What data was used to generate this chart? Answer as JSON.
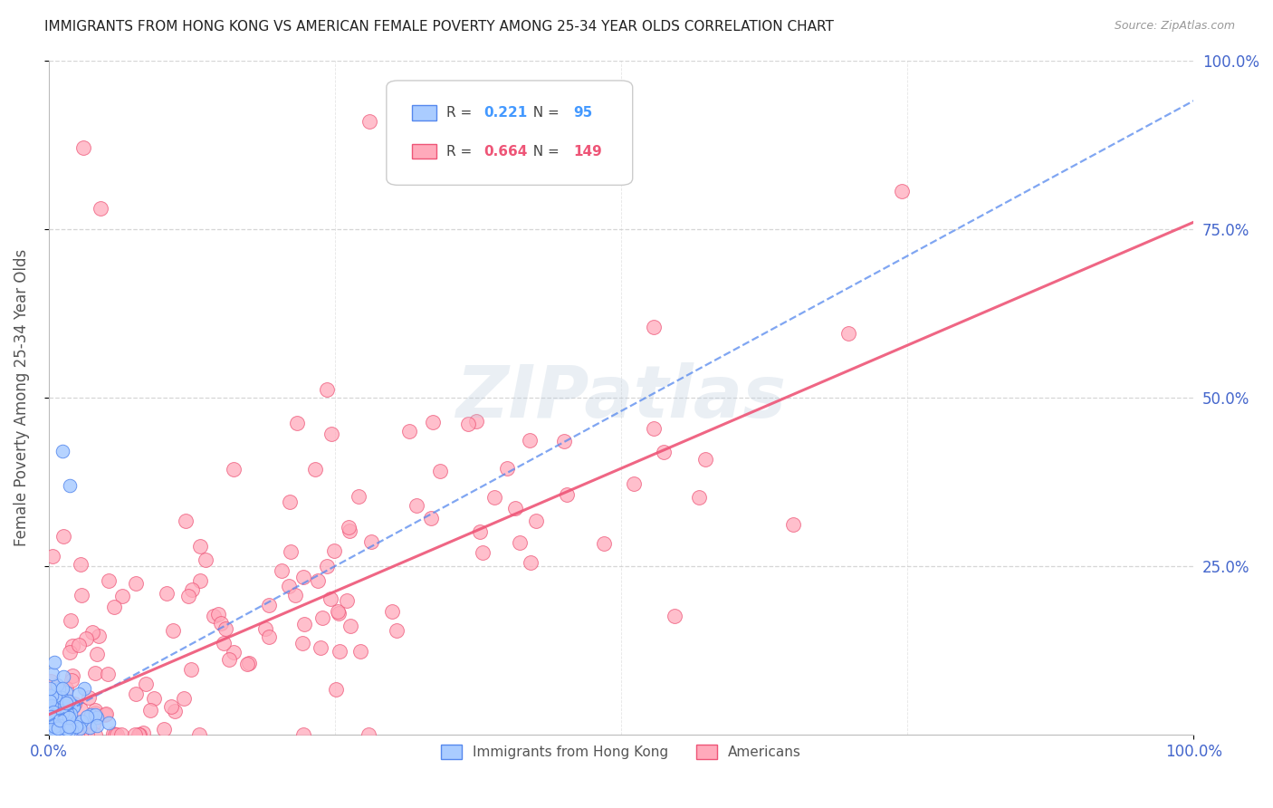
{
  "title": "IMMIGRANTS FROM HONG KONG VS AMERICAN FEMALE POVERTY AMONG 25-34 YEAR OLDS CORRELATION CHART",
  "source": "Source: ZipAtlas.com",
  "ylabel": "Female Poverty Among 25-34 Year Olds",
  "xlim": [
    0.0,
    1.0
  ],
  "ylim": [
    0.0,
    1.0
  ],
  "xticks": [
    0.0,
    1.0
  ],
  "xtick_labels": [
    "0.0%",
    "100.0%"
  ],
  "yticks": [
    0.0,
    0.25,
    0.5,
    0.75,
    1.0
  ],
  "ytick_labels_right": [
    "",
    "25.0%",
    "50.0%",
    "75.0%",
    "100.0%"
  ],
  "series1_label": "Immigrants from Hong Kong",
  "series1_R": 0.221,
  "series1_N": 95,
  "series1_edge_color": "#5588ee",
  "series1_fill_color": "#aaccff",
  "series2_label": "Americans",
  "series2_R": 0.664,
  "series2_N": 149,
  "series2_edge_color": "#ee5577",
  "series2_fill_color": "#ffaabb",
  "blue_line_slope": 0.92,
  "blue_line_intercept": 0.02,
  "pink_line_slope": 0.73,
  "pink_line_intercept": 0.03,
  "watermark": "ZIPatlas",
  "background_color": "#ffffff",
  "grid_color": "#cccccc",
  "title_color": "#222222",
  "axis_label_color": "#555555",
  "tick_label_color": "#4466cc",
  "legend_R_color1": "#4499ff",
  "legend_R_color2": "#ee5577",
  "seed1": 42,
  "seed2": 77
}
